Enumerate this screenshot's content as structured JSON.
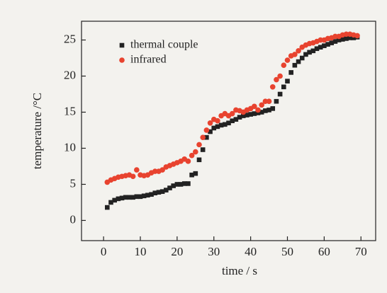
{
  "chart_data": {
    "type": "scatter",
    "xlabel": "time / s",
    "ylabel": "temperature /°C",
    "x": [
      1,
      2,
      3,
      4,
      5,
      6,
      7,
      8,
      9,
      10,
      11,
      12,
      13,
      14,
      15,
      16,
      17,
      18,
      19,
      20,
      21,
      22,
      23,
      24,
      25,
      26,
      27,
      28,
      29,
      30,
      31,
      32,
      33,
      34,
      35,
      36,
      37,
      38,
      39,
      40,
      41,
      42,
      43,
      44,
      45,
      46,
      47,
      48,
      49,
      50,
      51,
      52,
      53,
      54,
      55,
      56,
      57,
      58,
      59,
      60,
      61,
      62,
      63,
      64,
      65,
      66,
      67,
      68,
      69
    ],
    "series": [
      {
        "name": "thermal couple",
        "color": "#222222",
        "marker": "square",
        "values": [
          1.8,
          2.5,
          2.8,
          3.0,
          3.1,
          3.2,
          3.2,
          3.2,
          3.3,
          3.3,
          3.4,
          3.5,
          3.6,
          3.8,
          3.9,
          4.0,
          4.2,
          4.5,
          4.8,
          5.0,
          5.0,
          5.1,
          5.1,
          6.3,
          6.5,
          8.4,
          9.8,
          11.5,
          12.3,
          12.8,
          13.0,
          13.2,
          13.3,
          13.5,
          13.8,
          14.0,
          14.3,
          14.5,
          14.6,
          14.7,
          14.8,
          14.9,
          15.0,
          15.2,
          15.3,
          15.5,
          16.5,
          17.5,
          18.5,
          19.3,
          20.5,
          21.5,
          22.0,
          22.5,
          23.0,
          23.3,
          23.5,
          23.8,
          24.0,
          24.2,
          24.4,
          24.6,
          24.8,
          25.0,
          25.1,
          25.2,
          25.3,
          25.3,
          25.4
        ]
      },
      {
        "name": "infrared",
        "color": "#e8432f",
        "marker": "circle",
        "values": [
          5.3,
          5.6,
          5.8,
          6.0,
          6.1,
          6.2,
          6.3,
          6.1,
          7.0,
          6.3,
          6.2,
          6.3,
          6.6,
          6.8,
          6.8,
          7.0,
          7.4,
          7.6,
          7.8,
          8.0,
          8.2,
          8.5,
          8.2,
          9.0,
          9.5,
          10.5,
          11.5,
          12.5,
          13.5,
          14.0,
          13.8,
          14.5,
          14.8,
          14.5,
          14.8,
          15.3,
          15.2,
          15.0,
          15.3,
          15.5,
          15.8,
          15.3,
          16.0,
          16.5,
          16.5,
          18.5,
          19.5,
          20.0,
          21.5,
          22.2,
          22.8,
          23.0,
          23.5,
          24.0,
          24.3,
          24.5,
          24.6,
          24.8,
          25.0,
          25.0,
          25.2,
          25.3,
          25.5,
          25.5,
          25.7,
          25.8,
          25.8,
          25.7,
          25.6
        ]
      }
    ],
    "xlim": [
      -6,
      74
    ],
    "ylim": [
      -2.8,
      27.6
    ],
    "xticks": [
      0,
      10,
      20,
      30,
      40,
      50,
      60,
      70
    ],
    "yticks": [
      0,
      5,
      10,
      15,
      20,
      25
    ],
    "legend": "upper left"
  }
}
